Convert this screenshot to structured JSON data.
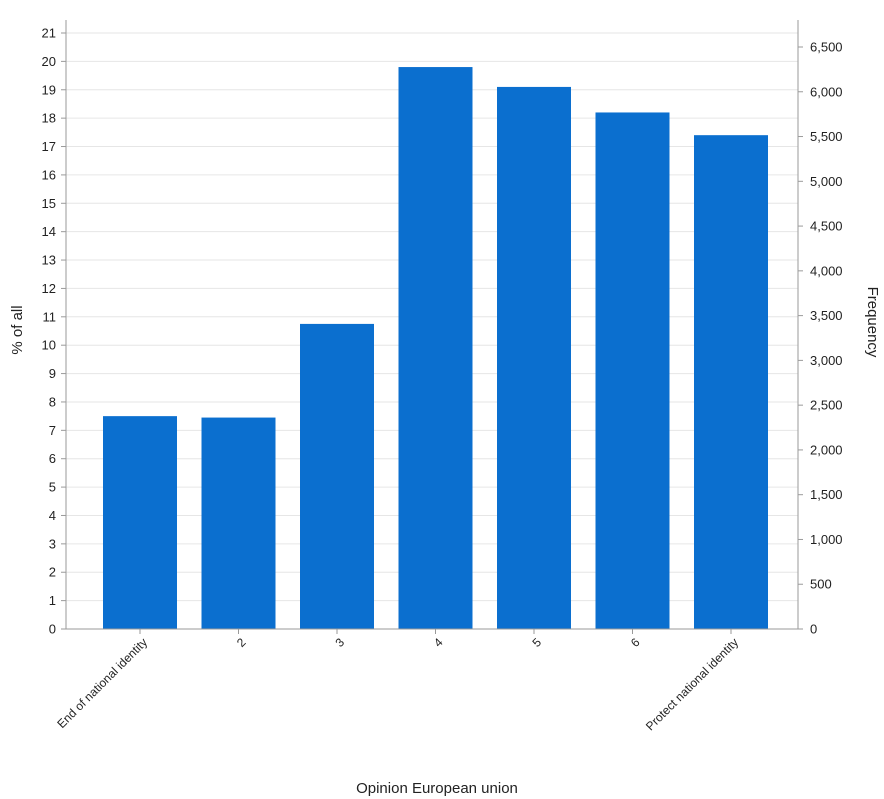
{
  "chart_data": {
    "type": "bar",
    "categories": [
      "End of national identity",
      "2",
      "3",
      "4",
      "5",
      "6",
      "Protect national identity"
    ],
    "values": [
      7.5,
      7.45,
      10.75,
      19.8,
      19.1,
      18.2,
      17.4
    ],
    "xlabel": "Opinion European union",
    "ylabel": "% of all",
    "y2label": "Frequency",
    "ylim": [
      0,
      21
    ],
    "yticks": [
      "0",
      "1",
      "2",
      "3",
      "4",
      "5",
      "6",
      "7",
      "8",
      "9",
      "10",
      "11",
      "12",
      "13",
      "14",
      "15",
      "16",
      "17",
      "18",
      "19",
      "20",
      "21"
    ],
    "y2lim": [
      0,
      6600
    ],
    "y2ticks": [
      {
        "value": 0,
        "label": "0"
      },
      {
        "value": 500,
        "label": "500"
      },
      {
        "value": 1000,
        "label": "1,000"
      },
      {
        "value": 1500,
        "label": "1,500"
      },
      {
        "value": 2000,
        "label": "2,000"
      },
      {
        "value": 2500,
        "label": "2,500"
      },
      {
        "value": 3000,
        "label": "3,000"
      },
      {
        "value": 3500,
        "label": "3,500"
      },
      {
        "value": 4000,
        "label": "4,000"
      },
      {
        "value": 4500,
        "label": "4,500"
      },
      {
        "value": 5000,
        "label": "5,000"
      },
      {
        "value": 5500,
        "label": "5,500"
      },
      {
        "value": 6000,
        "label": "6,000"
      },
      {
        "value": 6500,
        "label": "6,500"
      }
    ],
    "grid": true,
    "colors": {
      "bar": "#0b6fcf",
      "grid": "#e6e6e6",
      "axis": "#9a9a9a"
    }
  }
}
